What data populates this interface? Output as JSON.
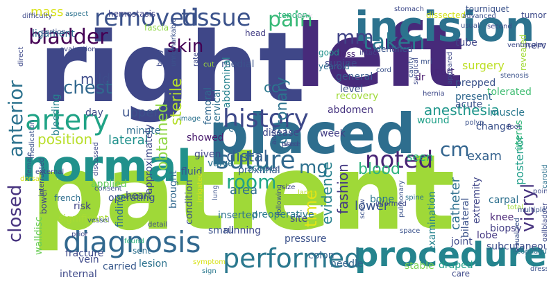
{
  "words": [
    {
      "text": "patient",
      "color": "#9fd938"
    },
    {
      "text": "right",
      "color": "#3f4788"
    },
    {
      "text": "left",
      "color": "#472a7a"
    },
    {
      "text": "placed",
      "color": "#2e6e8e"
    },
    {
      "text": "normal",
      "color": "#21918c"
    },
    {
      "text": "incision",
      "color": "#2c728e"
    },
    {
      "text": "procedure",
      "color": "#25848e"
    },
    {
      "text": "diagnosis",
      "color": "#31688e"
    },
    {
      "text": "performed",
      "color": "#2a788e"
    },
    {
      "text": "artery",
      "color": "#20a386"
    },
    {
      "text": "history",
      "color": "#3e4989"
    },
    {
      "text": "removed",
      "color": "#3b528b"
    },
    {
      "text": "noted",
      "color": "#482475"
    },
    {
      "text": "suture",
      "color": "#31688e"
    },
    {
      "text": "bladder",
      "color": "#440154"
    },
    {
      "text": "tissue",
      "color": "#3b528b"
    },
    {
      "text": "pain",
      "color": "#38b977"
    },
    {
      "text": "taken",
      "color": "#2a788e"
    },
    {
      "text": "anterior",
      "color": "#2c728e"
    },
    {
      "text": "chest",
      "color": "#31688e"
    },
    {
      "text": "closed",
      "color": "#46327e"
    },
    {
      "text": "vicryl",
      "color": "#46327e"
    },
    {
      "text": "mm",
      "color": "#414487"
    },
    {
      "text": "cm",
      "color": "#32648e"
    },
    {
      "text": "room",
      "color": "#20a486"
    },
    {
      "text": "mg",
      "color": "#2d708e"
    },
    {
      "text": "skin",
      "color": "#440154"
    },
    {
      "text": "time",
      "color": "#e2e418"
    },
    {
      "text": "position",
      "color": "#b8de29"
    },
    {
      "text": "distal",
      "color": "#355f8d"
    },
    {
      "text": "anesthesia",
      "color": "#1f968b"
    },
    {
      "text": "blood",
      "color": "#2db27d"
    },
    {
      "text": "coronary",
      "color": "#2c728e"
    },
    {
      "text": "evidence",
      "color": "#27808e"
    },
    {
      "text": "fashion",
      "color": "#443983"
    },
    {
      "text": "sterile",
      "color": "#b5de2b"
    },
    {
      "text": "obtained",
      "color": "#8fd744"
    },
    {
      "text": "mild",
      "color": "#3e4c8a"
    },
    {
      "text": "upper",
      "color": "#3b528b"
    },
    {
      "text": "lateral",
      "color": "#21918c"
    },
    {
      "text": "area",
      "color": "#2e6e8e"
    },
    {
      "text": "exam",
      "color": "#34618d"
    },
    {
      "text": "seen",
      "color": "#29af7f"
    },
    {
      "text": "catheter",
      "color": "#2d708e"
    },
    {
      "text": "lower",
      "color": "#3a548c"
    },
    {
      "text": "cc",
      "color": "#2a788e"
    },
    {
      "text": "mass",
      "color": "#d8e219"
    },
    {
      "text": "surgery",
      "color": "#bddf26"
    },
    {
      "text": "port",
      "color": "#482878"
    },
    {
      "text": "dr",
      "color": "#481b6d"
    },
    {
      "text": "level",
      "color": "#3c4f8a"
    },
    {
      "text": "general",
      "color": "#38598c"
    },
    {
      "text": "recovery",
      "color": "#a0da39"
    },
    {
      "text": "identified",
      "color": "#3a548c"
    },
    {
      "text": "nerve",
      "color": "#3e4989"
    },
    {
      "text": "tolerated",
      "color": "#40bd72"
    },
    {
      "text": "ligament",
      "color": "#2e6e8e"
    },
    {
      "text": "hemostasis",
      "color": "#414487"
    },
    {
      "text": "fascia",
      "color": "#8fd744"
    },
    {
      "text": "tendon",
      "color": "#2fb47c"
    },
    {
      "text": "intact",
      "color": "#424086"
    },
    {
      "text": "dissected",
      "color": "#d2e21b"
    },
    {
      "text": "tumor",
      "color": "#3e4a89"
    },
    {
      "text": "head",
      "color": "#433e85"
    },
    {
      "text": "medial",
      "color": "#3b528b"
    },
    {
      "text": "yearold",
      "color": "#2e6e8e"
    },
    {
      "text": "loss",
      "color": "#482475"
    },
    {
      "text": "good",
      "color": "#21918c"
    },
    {
      "text": "tube",
      "color": "#404588"
    },
    {
      "text": "muscle",
      "color": "#2a788e"
    },
    {
      "text": "prepped",
      "color": "#3b528b"
    },
    {
      "text": "present",
      "color": "#31688e"
    },
    {
      "text": "acute",
      "color": "#3b528b"
    },
    {
      "text": "wound",
      "color": "#1fa088"
    },
    {
      "text": "revealed",
      "color": "#a2da37"
    },
    {
      "text": "abdominal",
      "color": "#26828e"
    },
    {
      "text": "abdomen",
      "color": "#46337f"
    },
    {
      "text": "femoral",
      "color": "#31688e"
    },
    {
      "text": "disease",
      "color": "#3e4989"
    },
    {
      "text": "week",
      "color": "#433e85"
    },
    {
      "text": "change",
      "color": "#3b528b"
    },
    {
      "text": "posterior",
      "color": "#1f9e89"
    },
    {
      "text": "uterus",
      "color": "#32b67a"
    },
    {
      "text": "carpal",
      "color": "#2d708e"
    },
    {
      "text": "knee",
      "color": "#482475"
    },
    {
      "text": "biopsy",
      "color": "#433e85"
    },
    {
      "text": "bilateral",
      "color": "#3b528b"
    },
    {
      "text": "extremity",
      "color": "#404688"
    },
    {
      "text": "bone",
      "color": "#2a768e"
    },
    {
      "text": "site",
      "color": "#3e4989"
    },
    {
      "text": "minute",
      "color": "#2e6e8e"
    },
    {
      "text": "approximately",
      "color": "#3e4989"
    },
    {
      "text": "brought",
      "color": "#31688e"
    },
    {
      "text": "heart",
      "color": "#3e4a89"
    },
    {
      "text": "condition",
      "color": "#3b528b"
    },
    {
      "text": "operating",
      "color": "#3b528b"
    },
    {
      "text": "applied",
      "color": "#63cb5f"
    },
    {
      "text": "risk",
      "color": "#404588"
    },
    {
      "text": "finding",
      "color": "#2e6e8e"
    },
    {
      "text": "scope",
      "color": "#26828e"
    },
    {
      "text": "fluid",
      "color": "#3a548c"
    },
    {
      "text": "valve",
      "color": "#2c728e"
    },
    {
      "text": "given",
      "color": "#404588"
    },
    {
      "text": "showed",
      "color": "#481b6d"
    },
    {
      "text": "day",
      "color": "#3e4989"
    },
    {
      "text": "cervical",
      "color": "#2d708e"
    },
    {
      "text": "bleeding",
      "color": "#26828e"
    },
    {
      "text": "image",
      "color": "#2c728e"
    },
    {
      "text": "ct",
      "color": "#2e6e8e"
    },
    {
      "text": "proximal",
      "color": "#365c8d"
    },
    {
      "text": "large",
      "color": "#bade28"
    },
    {
      "text": "inserted",
      "color": "#2c728e"
    },
    {
      "text": "preoperative",
      "color": "#2a788e"
    },
    {
      "text": "pressure",
      "color": "#3b528b"
    },
    {
      "text": "colon",
      "color": "#34618d"
    },
    {
      "text": "needle",
      "color": "#32648e"
    },
    {
      "text": "stable",
      "color": "#7ad151"
    },
    {
      "text": "draped",
      "color": "#1f9e89"
    },
    {
      "text": "joint",
      "color": "#3e4989"
    },
    {
      "text": "lobe",
      "color": "#453882"
    },
    {
      "text": "subcutaneous",
      "color": "#3d4d8a"
    },
    {
      "text": "examination",
      "color": "#26828e"
    },
    {
      "text": "fracture",
      "color": "#3e4989"
    },
    {
      "text": "lesion",
      "color": "#2c728e"
    },
    {
      "text": "walldisc",
      "color": "#6ccd5a"
    },
    {
      "text": "significant",
      "color": "#a8db34"
    },
    {
      "text": "french",
      "color": "#2e6e8e"
    },
    {
      "text": "bowel",
      "color": "#404588"
    },
    {
      "text": "running",
      "color": "#3e4989"
    },
    {
      "text": "small",
      "color": "#3b528b"
    },
    {
      "text": "found",
      "color": "#2fb47c"
    },
    {
      "text": "sent",
      "color": "#2d708e"
    },
    {
      "text": "vein",
      "color": "#3e4989"
    },
    {
      "text": "carried",
      "color": "#38598c"
    },
    {
      "text": "internal",
      "color": "#3e4989"
    },
    {
      "text": "sign",
      "color": "#2a788e"
    },
    {
      "text": "symptom",
      "color": "#d8e219"
    },
    {
      "text": "supine",
      "color": "#3e4989"
    },
    {
      "text": "cord",
      "color": "#3b528b"
    },
    {
      "text": "neck",
      "color": "#ddd8e6"
    },
    {
      "text": "stenosis",
      "color": "#3b528b"
    },
    {
      "text": "hernia",
      "color": "#3e4989"
    },
    {
      "text": "polyp",
      "color": "#3b528b"
    },
    {
      "text": "foot",
      "color": "#3e4989"
    },
    {
      "text": "spine",
      "color": "#2c728e"
    },
    {
      "text": "total",
      "color": "#a0da39"
    },
    {
      "text": "point",
      "color": "#3e4989"
    },
    {
      "text": "space",
      "color": "#3b528b"
    },
    {
      "text": "care",
      "color": "#3e4989"
    },
    {
      "text": "screw",
      "color": "#3b528b"
    },
    {
      "text": "pulmonary",
      "color": "#3b528b"
    },
    {
      "text": "gallbladder",
      "color": "#3e4989"
    },
    {
      "text": "carotid",
      "color": "#2c728e"
    },
    {
      "text": "dressing",
      "color": "#3b528b"
    },
    {
      "text": "esophagus",
      "color": "#2c728e"
    },
    {
      "text": "visualized",
      "color": "#3b528b"
    },
    {
      "text": "ventricular",
      "color": "#3e4989"
    },
    {
      "text": "tourniquet",
      "color": "#3b528b"
    },
    {
      "text": "second",
      "color": "#3e4989"
    },
    {
      "text": "advanced",
      "color": "#3b528b"
    },
    {
      "text": "stomach",
      "color": "#3e4989"
    },
    {
      "text": "usual",
      "color": "#3b528b"
    },
    {
      "text": "aspect",
      "color": "#2c728e"
    },
    {
      "text": "evaluation",
      "color": "#3e4989"
    },
    {
      "text": "difficulty",
      "color": "#3e4989"
    },
    {
      "text": "portion",
      "color": "#3b528b"
    },
    {
      "text": "direct",
      "color": "#3e4989"
    },
    {
      "text": "consent",
      "color": "#3b528b"
    },
    {
      "text": "discussed",
      "color": "#3e4989"
    },
    {
      "text": "vessel",
      "color": "#3b528b"
    },
    {
      "text": "external",
      "color": "#3e4989"
    },
    {
      "text": "medication",
      "color": "#3b528b"
    },
    {
      "text": "prior",
      "color": "#3e4989"
    },
    {
      "text": "unremarkable",
      "color": "#3b528b"
    },
    {
      "text": "rate",
      "color": "#3e4989"
    },
    {
      "text": "cut",
      "color": "#a0da39"
    },
    {
      "text": "aortic",
      "color": "#3e4989"
    },
    {
      "text": "wire",
      "color": "#3b528b"
    },
    {
      "text": "informed",
      "color": "#3e4989"
    },
    {
      "text": "cavity",
      "color": "#3b528b"
    },
    {
      "text": "surgical",
      "color": "#3e4989"
    },
    {
      "text": "mri",
      "color": "#3b528b"
    },
    {
      "text": "appeared",
      "color": "#3e4989"
    },
    {
      "text": "following",
      "color": "#3b528b"
    },
    {
      "text": "detail",
      "color": "#3e4989"
    },
    {
      "text": "lung",
      "color": "#3b528b"
    },
    {
      "text": "dorsal",
      "color": "#d8e219"
    },
    {
      "text": "body",
      "color": "#3e4989"
    },
    {
      "text": "irrigated",
      "color": "#d8e219"
    },
    {
      "text": "interrupted",
      "color": "#3e4989"
    },
    {
      "text": "multiple",
      "color": "#3b528b"
    },
    {
      "text": "size",
      "color": "#3e4989"
    },
    {
      "text": "female",
      "color": "#3b528b"
    },
    {
      "text": "iv",
      "color": "#3e4989"
    },
    {
      "text": "place",
      "color": "#3b528b"
    },
    {
      "text": "used",
      "color": "#3e4989"
    }
  ]
}
